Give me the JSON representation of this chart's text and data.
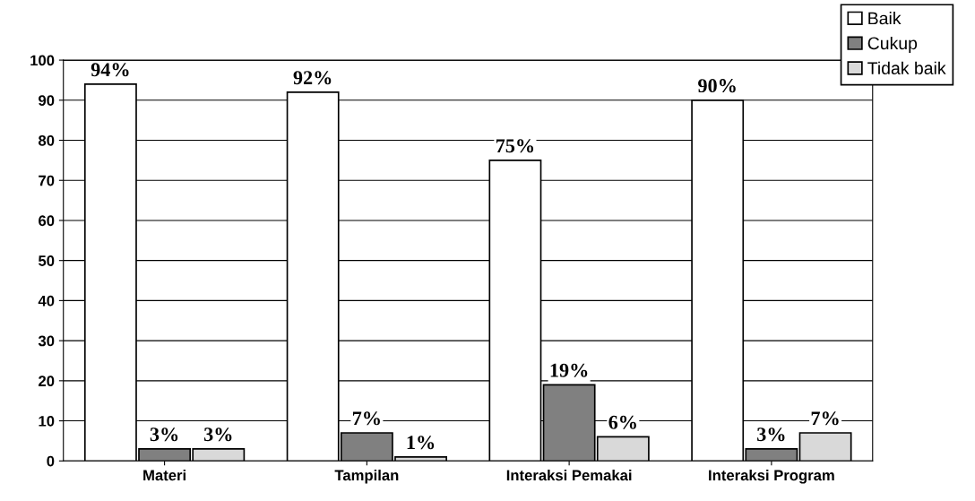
{
  "chart_data": {
    "type": "bar",
    "categories": [
      "Materi",
      "Tampilan",
      "Interaksi Pemakai",
      "Interaksi Program"
    ],
    "series": [
      {
        "name": "Baik",
        "color": "#ffffff",
        "values": [
          94,
          92,
          75,
          90
        ],
        "value_labels": [
          "94%",
          "92%",
          "75%",
          "90%"
        ]
      },
      {
        "name": "Cukup",
        "color": "#808080",
        "values": [
          3,
          7,
          19,
          3
        ],
        "value_labels": [
          "3%",
          "7%",
          "19%",
          "3%"
        ]
      },
      {
        "name": "Tidak baik",
        "color": "#d9d9d9",
        "values": [
          3,
          1,
          6,
          7
        ],
        "value_labels": [
          "3%",
          "1%",
          "6%",
          "7%"
        ]
      }
    ],
    "ylim": [
      0,
      100
    ],
    "yticks": [
      0,
      10,
      20,
      30,
      40,
      50,
      60,
      70,
      80,
      90,
      100
    ],
    "grid": "y",
    "legend": "top right"
  }
}
